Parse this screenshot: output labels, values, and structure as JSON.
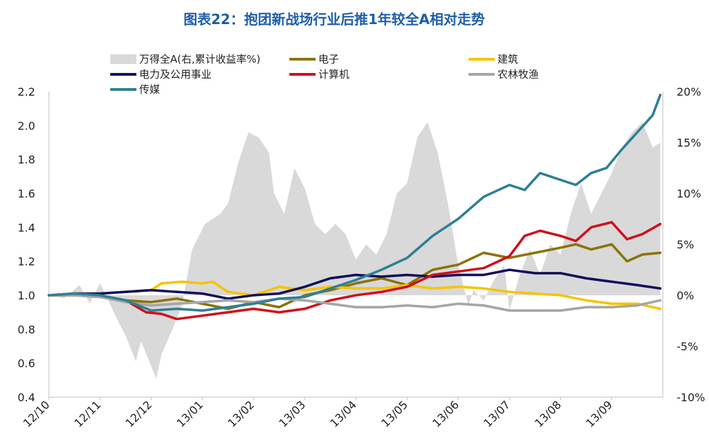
{
  "chart_data": {
    "type": "line",
    "title": "图表22：抱团新战场行业后推1年较全A相对走势",
    "x_categories": [
      "12/10",
      "12/11",
      "12/12",
      "13/01",
      "13/02",
      "13/03",
      "13/04",
      "13/05",
      "13/06",
      "13/07",
      "13/08",
      "13/09"
    ],
    "left_axis": {
      "ylim": [
        0.4,
        2.2
      ],
      "ticks": [
        "0.4",
        "0.6",
        "0.8",
        "1.0",
        "1.2",
        "1.4",
        "1.6",
        "1.8",
        "2.0",
        "2.2"
      ]
    },
    "right_axis": {
      "ylim": [
        -10,
        20
      ],
      "ticks": [
        "-10%",
        "-5%",
        "0%",
        "5%",
        "10%",
        "15%",
        "20%"
      ]
    },
    "area_series": {
      "name": "万得全A(右,累计收益率%)",
      "color": "#d9d9d9",
      "x": [
        0,
        0.3,
        0.6,
        0.8,
        1.0,
        1.3,
        1.5,
        1.7,
        1.8,
        2.0,
        2.1,
        2.2,
        2.4,
        2.6,
        2.8,
        2.95,
        3.05,
        3.2,
        3.35,
        3.5,
        3.7,
        3.9,
        4.1,
        4.3,
        4.4,
        4.6,
        4.8,
        5.0,
        5.2,
        5.4,
        5.6,
        5.8,
        6.0,
        6.2,
        6.4,
        6.6,
        6.8,
        7.0,
        7.2,
        7.4,
        7.6,
        7.8,
        8.0,
        8.2,
        8.3,
        8.5,
        8.7,
        8.9,
        9.0,
        9.2,
        9.4,
        9.6,
        9.8,
        10.0,
        10.2,
        10.4,
        10.6,
        10.8,
        11.0,
        11.2,
        11.4,
        11.6,
        11.8,
        11.95
      ],
      "values": [
        0,
        -0.3,
        1.0,
        -0.8,
        1.2,
        -2.0,
        -4.0,
        -6.5,
        -4.5,
        -7.0,
        -8.2,
        -5.8,
        -3.5,
        -1.0,
        4.5,
        6.0,
        7.0,
        7.5,
        8.0,
        9.0,
        13.0,
        16.0,
        15.5,
        14.0,
        10.0,
        8.0,
        12.5,
        10.5,
        7.0,
        6.0,
        7.0,
        6.0,
        3.5,
        5.0,
        4.0,
        6.0,
        10.0,
        11.0,
        15.5,
        17.0,
        14.0,
        9.0,
        3.0,
        -1.0,
        0.5,
        -0.5,
        1.5,
        3.0,
        -1.5,
        2.0,
        4.5,
        2.0,
        5.0,
        4.0,
        8.0,
        11.0,
        8.0,
        10.0,
        12.0,
        14.5,
        16.0,
        17.0,
        14.5,
        15.0
      ]
    },
    "series": [
      {
        "name": "电子",
        "color": "#8b7308",
        "x": [
          0,
          0.5,
          1.0,
          1.5,
          2.0,
          2.5,
          3.0,
          3.5,
          4.0,
          4.5,
          5.0,
          5.5,
          6.0,
          6.5,
          7.0,
          7.5,
          8.0,
          8.5,
          9.0,
          9.5,
          10.0,
          10.3,
          10.6,
          11.0,
          11.3,
          11.6,
          11.95
        ],
        "values": [
          1.0,
          1.01,
          1.0,
          0.97,
          0.96,
          0.98,
          0.95,
          0.92,
          0.96,
          0.93,
          1.0,
          1.03,
          1.07,
          1.1,
          1.06,
          1.15,
          1.18,
          1.25,
          1.22,
          1.25,
          1.28,
          1.3,
          1.27,
          1.3,
          1.2,
          1.24,
          1.25
        ]
      },
      {
        "name": "建筑",
        "color": "#f5c400",
        "x": [
          0,
          0.5,
          1.0,
          1.5,
          2.0,
          2.2,
          2.6,
          3.0,
          3.2,
          3.5,
          4.0,
          4.5,
          5.0,
          5.5,
          6.0,
          6.5,
          7.0,
          7.5,
          8.0,
          8.5,
          9.0,
          9.5,
          10.0,
          10.5,
          11.0,
          11.5,
          11.95
        ],
        "values": [
          1.0,
          1.0,
          1.01,
          1.02,
          1.03,
          1.07,
          1.08,
          1.07,
          1.08,
          1.02,
          1.0,
          1.05,
          1.03,
          1.05,
          1.04,
          1.04,
          1.06,
          1.04,
          1.05,
          1.04,
          1.02,
          1.01,
          1.0,
          0.97,
          0.95,
          0.95,
          0.92
        ]
      },
      {
        "name": "电力及公用事业",
        "color": "#12105c",
        "x": [
          0,
          0.5,
          1.0,
          1.5,
          2.0,
          2.5,
          3.0,
          3.5,
          4.0,
          4.5,
          5.0,
          5.5,
          6.0,
          6.5,
          7.0,
          7.5,
          8.0,
          8.5,
          9.0,
          9.5,
          10.0,
          10.5,
          11.0,
          11.5,
          11.95
        ],
        "values": [
          1.0,
          1.01,
          1.01,
          1.02,
          1.03,
          1.02,
          1.01,
          0.98,
          1.0,
          1.01,
          1.05,
          1.1,
          1.12,
          1.11,
          1.12,
          1.11,
          1.12,
          1.12,
          1.15,
          1.13,
          1.13,
          1.1,
          1.08,
          1.06,
          1.04
        ]
      },
      {
        "name": "计算机",
        "color": "#d0101a",
        "x": [
          0,
          0.5,
          1.0,
          1.5,
          1.9,
          2.2,
          2.5,
          3.0,
          3.5,
          4.0,
          4.5,
          5.0,
          5.5,
          6.0,
          6.5,
          7.0,
          7.5,
          8.0,
          8.5,
          9.0,
          9.3,
          9.6,
          10.0,
          10.3,
          10.6,
          11.0,
          11.3,
          11.6,
          11.95
        ],
        "values": [
          1.0,
          1.0,
          0.99,
          0.97,
          0.9,
          0.89,
          0.86,
          0.88,
          0.9,
          0.92,
          0.9,
          0.92,
          0.97,
          1.0,
          1.02,
          1.05,
          1.12,
          1.14,
          1.16,
          1.23,
          1.35,
          1.38,
          1.35,
          1.32,
          1.4,
          1.43,
          1.33,
          1.36,
          1.42
        ]
      },
      {
        "name": "农林牧渔",
        "color": "#a6a6a6",
        "x": [
          0,
          0.5,
          1.0,
          1.5,
          2.0,
          2.5,
          3.0,
          3.5,
          4.0,
          4.5,
          5.0,
          5.5,
          6.0,
          6.5,
          7.0,
          7.5,
          8.0,
          8.5,
          9.0,
          9.5,
          10.0,
          10.5,
          11.0,
          11.5,
          11.95
        ],
        "values": [
          1.0,
          1.0,
          0.99,
          0.96,
          0.94,
          0.95,
          0.96,
          0.97,
          0.96,
          0.98,
          0.97,
          0.95,
          0.93,
          0.93,
          0.94,
          0.93,
          0.95,
          0.94,
          0.91,
          0.91,
          0.91,
          0.93,
          0.93,
          0.94,
          0.97
        ]
      },
      {
        "name": "传媒",
        "color": "#2e8095",
        "x": [
          0,
          0.5,
          1.0,
          1.5,
          2.0,
          2.5,
          3.0,
          3.5,
          4.0,
          4.5,
          5.0,
          5.5,
          6.0,
          6.5,
          7.0,
          7.5,
          8.0,
          8.5,
          9.0,
          9.3,
          9.6,
          10.0,
          10.3,
          10.6,
          10.9,
          11.2,
          11.5,
          11.8,
          11.95
        ],
        "values": [
          1.0,
          1.01,
          1.0,
          0.97,
          0.91,
          0.92,
          0.91,
          0.93,
          0.95,
          0.98,
          0.99,
          1.04,
          1.09,
          1.15,
          1.22,
          1.35,
          1.45,
          1.58,
          1.65,
          1.62,
          1.72,
          1.68,
          1.65,
          1.72,
          1.75,
          1.86,
          1.96,
          2.06,
          2.18
        ]
      }
    ]
  }
}
